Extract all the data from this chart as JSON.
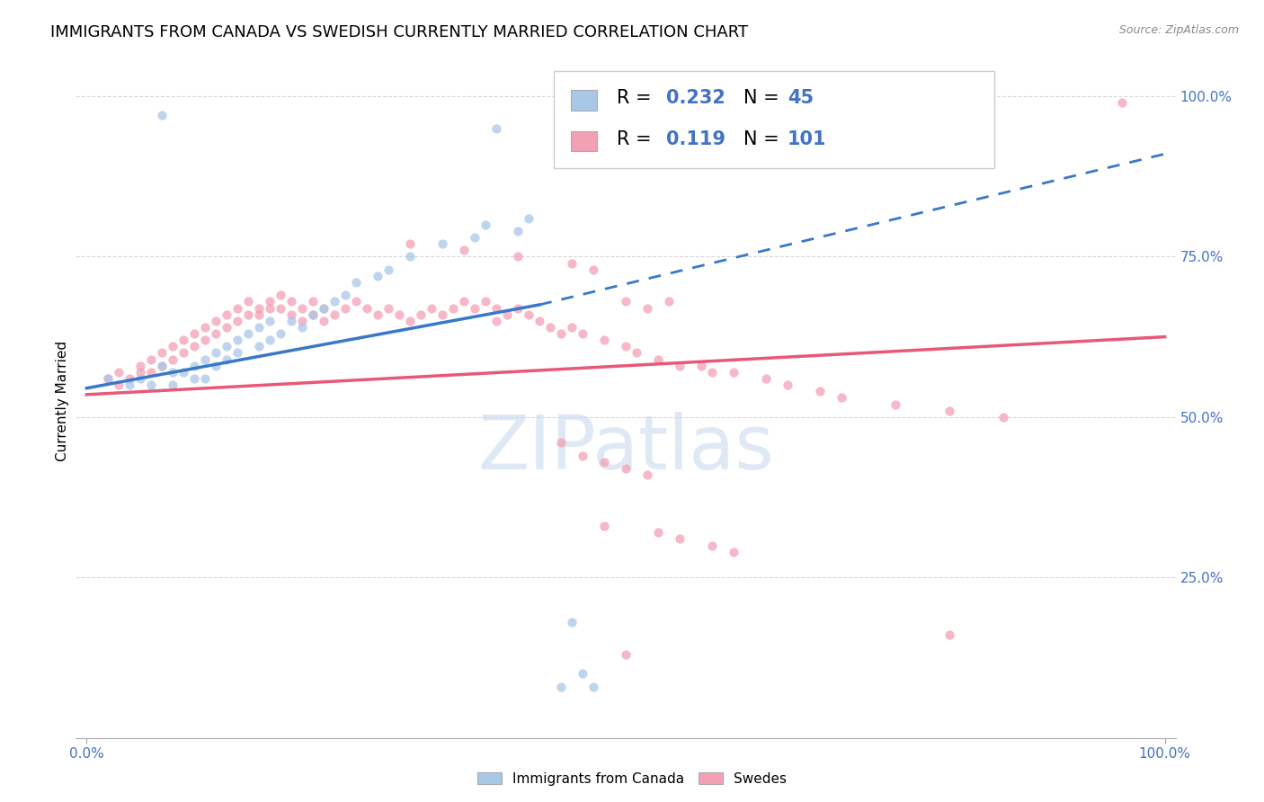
{
  "title": "IMMIGRANTS FROM CANADA VS SWEDISH CURRENTLY MARRIED CORRELATION CHART",
  "source": "Source: ZipAtlas.com",
  "ylabel": "Currently Married",
  "watermark": "ZIPatlas",
  "legend_r1": "0.232",
  "legend_n1": "45",
  "legend_r2": "0.119",
  "legend_n2": "101",
  "legend_label1": "Immigrants from Canada",
  "legend_label2": "Swedes",
  "blue_color": "#a8c8e8",
  "pink_color": "#f4a0b4",
  "blue_line_color": "#3878c8",
  "pink_line_color": "#e85878",
  "grid_color": "#d8d8d8",
  "bg_color": "#ffffff",
  "right_tick_color": "#4472c4",
  "title_fontsize": 13,
  "label_fontsize": 11,
  "legend_fontsize": 15,
  "source_fontsize": 9,
  "watermark_fontsize": 60,
  "scatter_size": 55,
  "scatter_alpha": 0.75,
  "blue_x": [
    0.02,
    0.04,
    0.05,
    0.06,
    0.07,
    0.08,
    0.08,
    0.09,
    0.1,
    0.1,
    0.11,
    0.11,
    0.12,
    0.12,
    0.13,
    0.13,
    0.14,
    0.14,
    0.15,
    0.16,
    0.16,
    0.17,
    0.17,
    0.18,
    0.19,
    0.2,
    0.21,
    0.22,
    0.23,
    0.24,
    0.25,
    0.27,
    0.28,
    0.3,
    0.33,
    0.36,
    0.37,
    0.4,
    0.41,
    0.44,
    0.45,
    0.46,
    0.47,
    0.07,
    0.38
  ],
  "blue_y": [
    0.56,
    0.55,
    0.56,
    0.55,
    0.58,
    0.55,
    0.57,
    0.57,
    0.56,
    0.58,
    0.56,
    0.59,
    0.58,
    0.6,
    0.59,
    0.61,
    0.6,
    0.62,
    0.63,
    0.61,
    0.64,
    0.62,
    0.65,
    0.63,
    0.65,
    0.64,
    0.66,
    0.67,
    0.68,
    0.69,
    0.71,
    0.72,
    0.73,
    0.75,
    0.77,
    0.78,
    0.8,
    0.79,
    0.81,
    0.08,
    0.18,
    0.1,
    0.08,
    0.97,
    0.95
  ],
  "pink_x": [
    0.02,
    0.03,
    0.03,
    0.04,
    0.05,
    0.05,
    0.06,
    0.06,
    0.07,
    0.07,
    0.08,
    0.08,
    0.09,
    0.09,
    0.1,
    0.1,
    0.11,
    0.11,
    0.12,
    0.12,
    0.13,
    0.13,
    0.14,
    0.14,
    0.15,
    0.15,
    0.16,
    0.16,
    0.17,
    0.17,
    0.18,
    0.18,
    0.19,
    0.19,
    0.2,
    0.2,
    0.21,
    0.21,
    0.22,
    0.22,
    0.23,
    0.24,
    0.25,
    0.26,
    0.27,
    0.28,
    0.29,
    0.3,
    0.31,
    0.32,
    0.33,
    0.34,
    0.35,
    0.36,
    0.37,
    0.38,
    0.38,
    0.39,
    0.4,
    0.41,
    0.42,
    0.43,
    0.44,
    0.45,
    0.46,
    0.48,
    0.5,
    0.51,
    0.53,
    0.55,
    0.57,
    0.58,
    0.6,
    0.63,
    0.65,
    0.68,
    0.7,
    0.75,
    0.8,
    0.85,
    0.3,
    0.35,
    0.4,
    0.45,
    0.47,
    0.5,
    0.52,
    0.54,
    0.44,
    0.46,
    0.48,
    0.5,
    0.52,
    0.48,
    0.53,
    0.55,
    0.58,
    0.6,
    0.8,
    0.96,
    0.5
  ],
  "pink_y": [
    0.56,
    0.55,
    0.57,
    0.56,
    0.57,
    0.58,
    0.57,
    0.59,
    0.58,
    0.6,
    0.59,
    0.61,
    0.6,
    0.62,
    0.61,
    0.63,
    0.62,
    0.64,
    0.63,
    0.65,
    0.64,
    0.66,
    0.65,
    0.67,
    0.66,
    0.68,
    0.67,
    0.66,
    0.68,
    0.67,
    0.69,
    0.67,
    0.68,
    0.66,
    0.67,
    0.65,
    0.68,
    0.66,
    0.67,
    0.65,
    0.66,
    0.67,
    0.68,
    0.67,
    0.66,
    0.67,
    0.66,
    0.65,
    0.66,
    0.67,
    0.66,
    0.67,
    0.68,
    0.67,
    0.68,
    0.67,
    0.65,
    0.66,
    0.67,
    0.66,
    0.65,
    0.64,
    0.63,
    0.64,
    0.63,
    0.62,
    0.61,
    0.6,
    0.59,
    0.58,
    0.58,
    0.57,
    0.57,
    0.56,
    0.55,
    0.54,
    0.53,
    0.52,
    0.51,
    0.5,
    0.77,
    0.76,
    0.75,
    0.74,
    0.73,
    0.68,
    0.67,
    0.68,
    0.46,
    0.44,
    0.43,
    0.42,
    0.41,
    0.33,
    0.32,
    0.31,
    0.3,
    0.29,
    0.16,
    0.99,
    0.13
  ]
}
